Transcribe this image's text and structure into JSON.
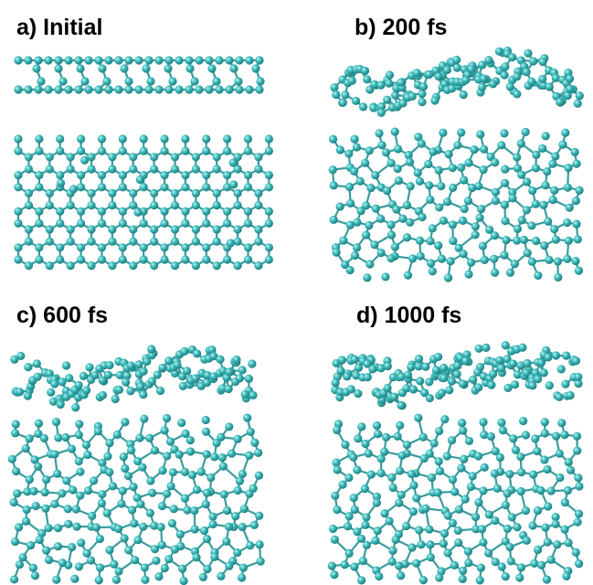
{
  "panels": [
    {
      "label": "a)  Initial"
    },
    {
      "label": "b) 200 fs"
    },
    {
      "label": "c) 600 fs"
    },
    {
      "label": "d) 1000 fs"
    }
  ]
}
